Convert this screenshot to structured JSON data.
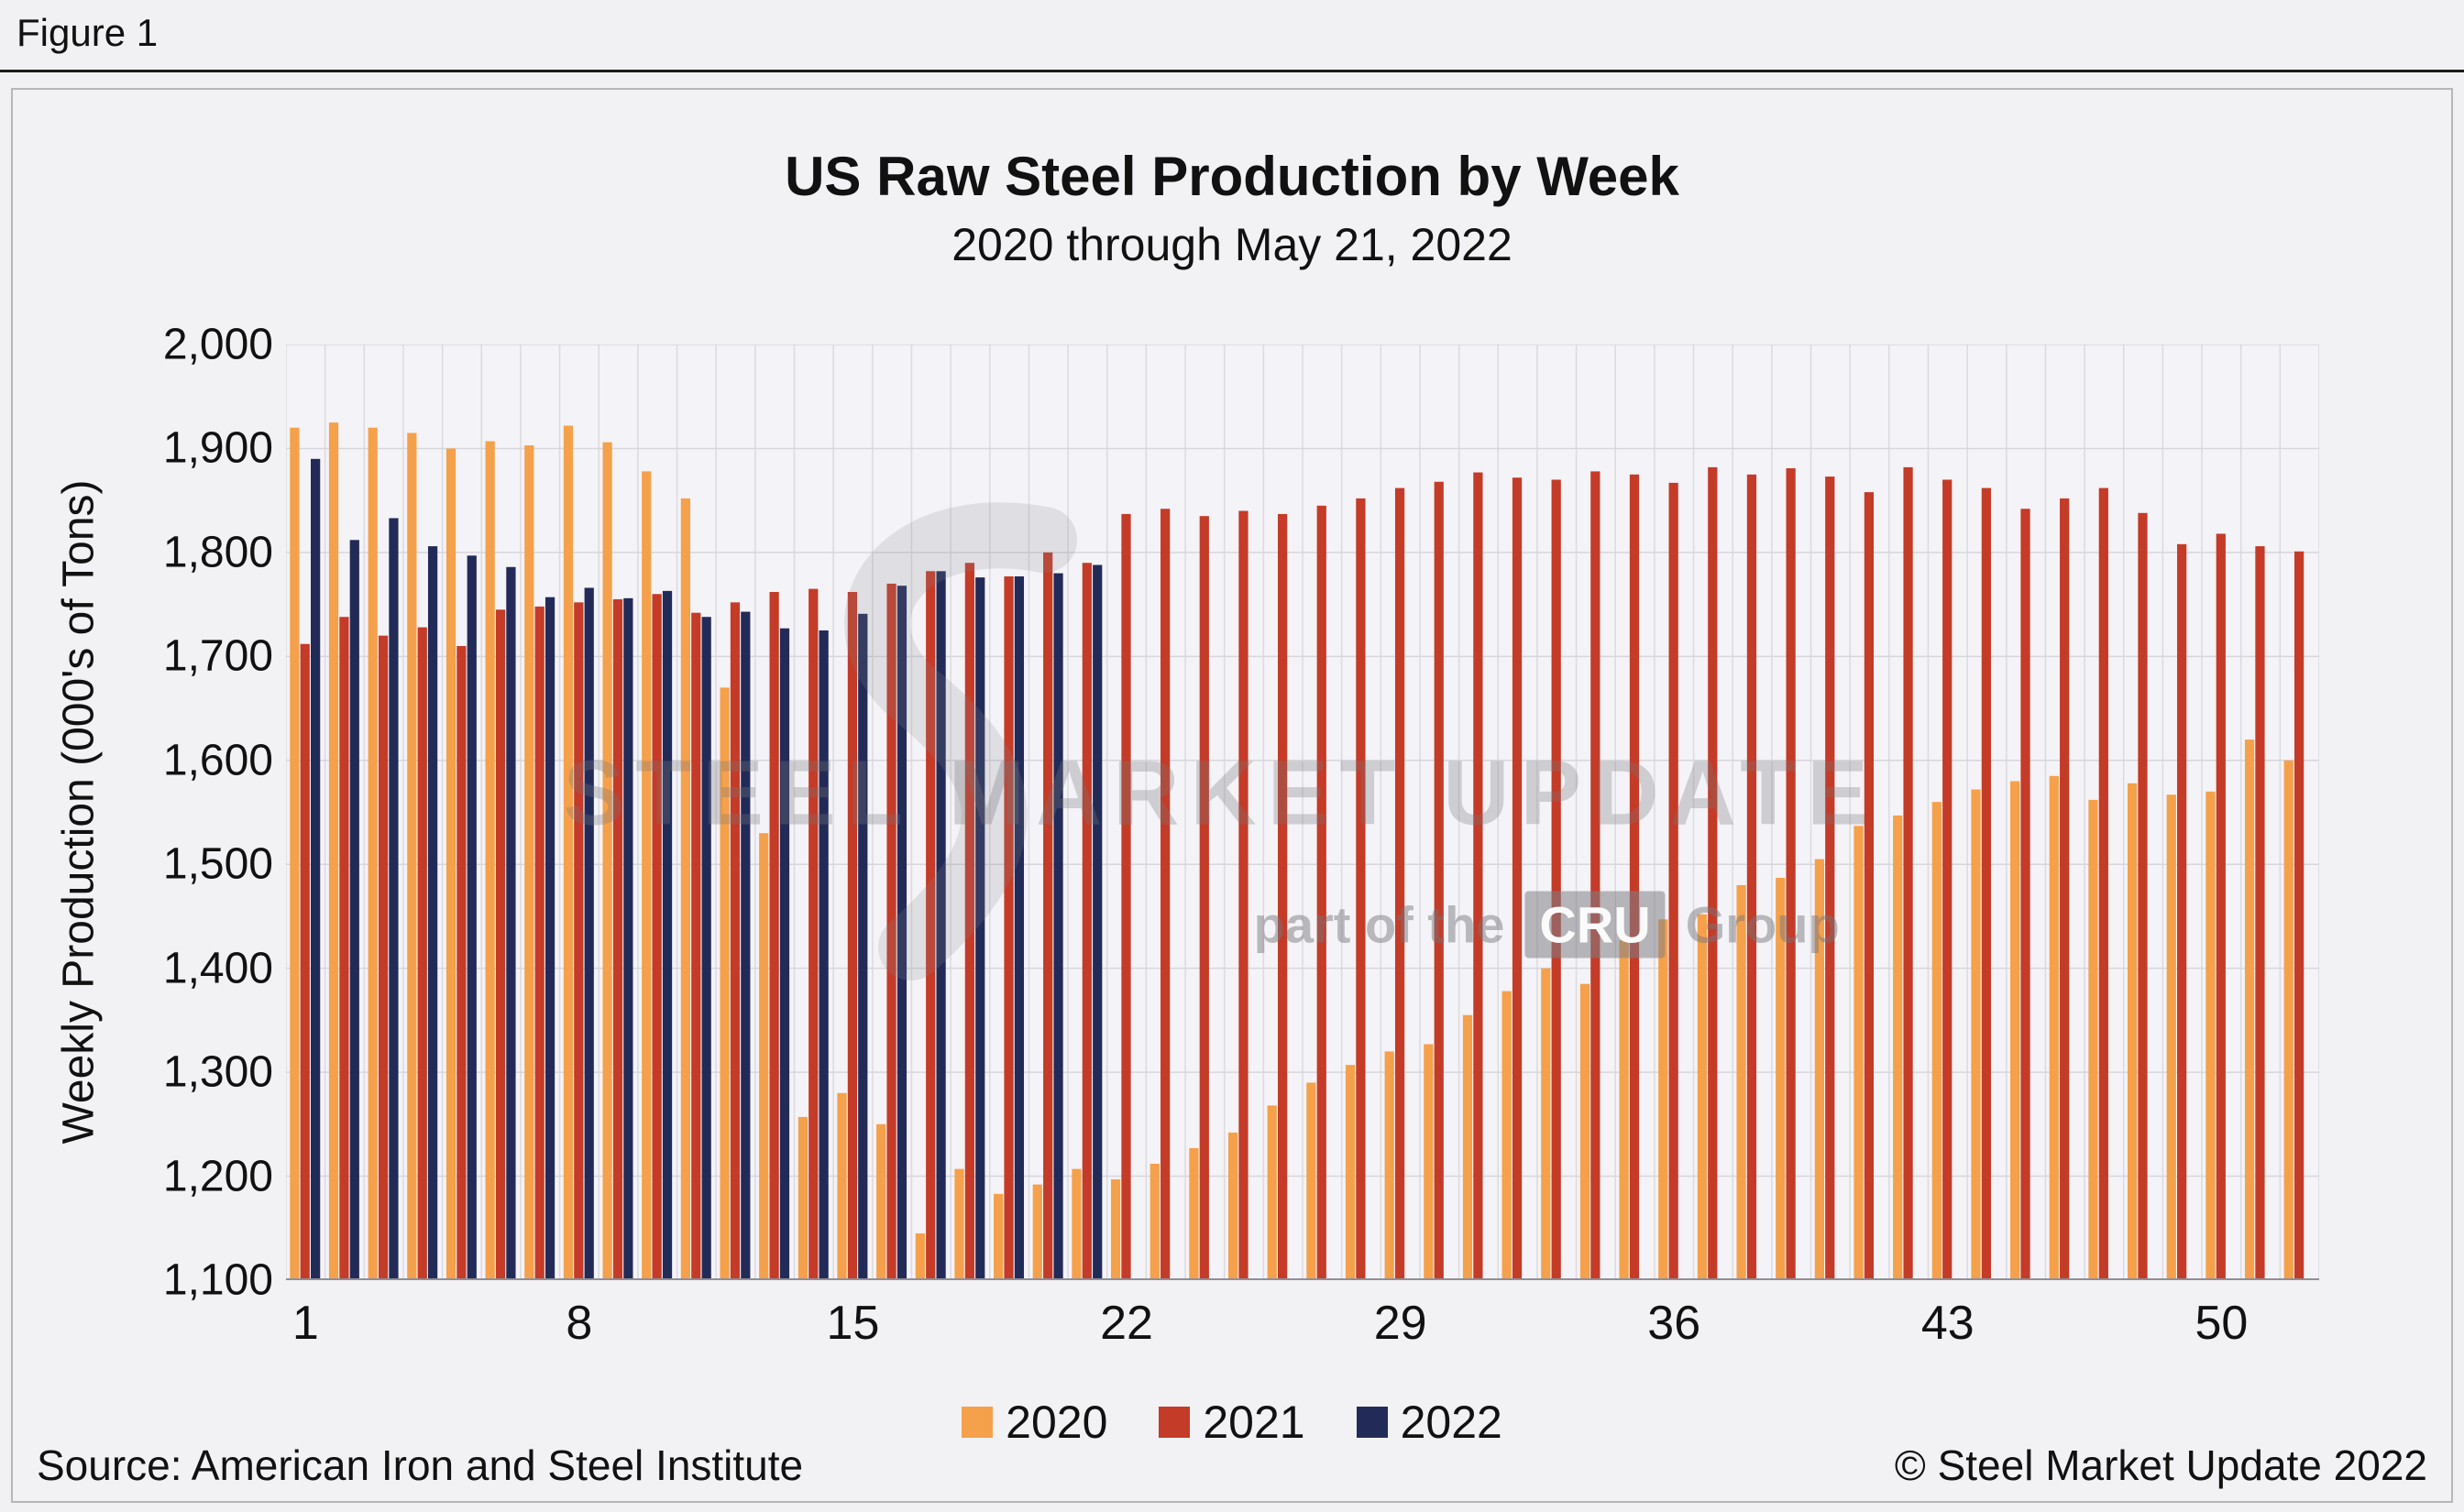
{
  "figure_label": "Figure 1",
  "chart_data": {
    "type": "bar",
    "title": "US Raw Steel Production by Week",
    "subtitle": "2020 through May 21, 2022",
    "xlabel": "",
    "ylabel": "Weekly Production (000's of Tons)",
    "ylim": [
      1100,
      2000
    ],
    "ytick_step": 100,
    "grid": true,
    "legend_position": "bottom",
    "yticks": [
      {
        "value": 1100,
        "label": "1,100"
      },
      {
        "value": 1200,
        "label": "1,200"
      },
      {
        "value": 1300,
        "label": "1,300"
      },
      {
        "value": 1400,
        "label": "1,400"
      },
      {
        "value": 1500,
        "label": "1,500"
      },
      {
        "value": 1600,
        "label": "1,600"
      },
      {
        "value": 1700,
        "label": "1,700"
      },
      {
        "value": 1800,
        "label": "1,800"
      },
      {
        "value": 1900,
        "label": "1,900"
      },
      {
        "value": 2000,
        "label": "2,000"
      }
    ],
    "xticks": [
      {
        "value": 1,
        "label": "1"
      },
      {
        "value": 8,
        "label": "8"
      },
      {
        "value": 15,
        "label": "15"
      },
      {
        "value": 22,
        "label": "22"
      },
      {
        "value": 29,
        "label": "29"
      },
      {
        "value": 36,
        "label": "36"
      },
      {
        "value": 43,
        "label": "43"
      },
      {
        "value": 50,
        "label": "50"
      }
    ],
    "x": [
      1,
      2,
      3,
      4,
      5,
      6,
      7,
      8,
      9,
      10,
      11,
      12,
      13,
      14,
      15,
      16,
      17,
      18,
      19,
      20,
      21,
      22,
      23,
      24,
      25,
      26,
      27,
      28,
      29,
      30,
      31,
      32,
      33,
      34,
      35,
      36,
      37,
      38,
      39,
      40,
      41,
      42,
      43,
      44,
      45,
      46,
      47,
      48,
      49,
      50,
      51,
      52
    ],
    "series": [
      {
        "name": "2020",
        "color": "#F5A04B",
        "values": [
          1920,
          1925,
          1920,
          1915,
          1900,
          1907,
          1903,
          1922,
          1906,
          1878,
          1852,
          1670,
          1530,
          1257,
          1280,
          1250,
          1145,
          1207,
          1183,
          1192,
          1207,
          1197,
          1212,
          1227,
          1242,
          1268,
          1290,
          1307,
          1320,
          1327,
          1355,
          1378,
          1400,
          1385,
          1427,
          1447,
          1452,
          1480,
          1487,
          1505,
          1537,
          1547,
          1560,
          1572,
          1580,
          1585,
          1562,
          1578,
          1567,
          1570,
          1620,
          1600
        ]
      },
      {
        "name": "2021",
        "color": "#C43B28",
        "values": [
          1712,
          1738,
          1720,
          1728,
          1710,
          1745,
          1748,
          1752,
          1755,
          1760,
          1742,
          1752,
          1762,
          1765,
          1762,
          1770,
          1782,
          1790,
          1777,
          1800,
          1790,
          1837,
          1842,
          1835,
          1840,
          1837,
          1845,
          1852,
          1862,
          1868,
          1877,
          1872,
          1870,
          1878,
          1875,
          1867,
          1882,
          1875,
          1881,
          1873,
          1858,
          1882,
          1870,
          1862,
          1842,
          1852,
          1862,
          1838,
          1808,
          1818,
          1806,
          1801
        ]
      },
      {
        "name": "2022",
        "color": "#222B58",
        "values": [
          1890,
          1812,
          1833,
          1806,
          1797,
          1786,
          1757,
          1766,
          1756,
          1763,
          1738,
          1743,
          1727,
          1725,
          1741,
          1768,
          1782,
          1776,
          1777,
          1780,
          1788
        ]
      }
    ]
  },
  "watermark": {
    "line1": "STEEL MARKET UPDATE",
    "line2_prefix": "part of the",
    "line2_box": "CRU",
    "line2_suffix": "Group"
  },
  "footer": {
    "source": "Source: American Iron and Steel Institute",
    "copyright": "© Steel Market Update 2022"
  }
}
